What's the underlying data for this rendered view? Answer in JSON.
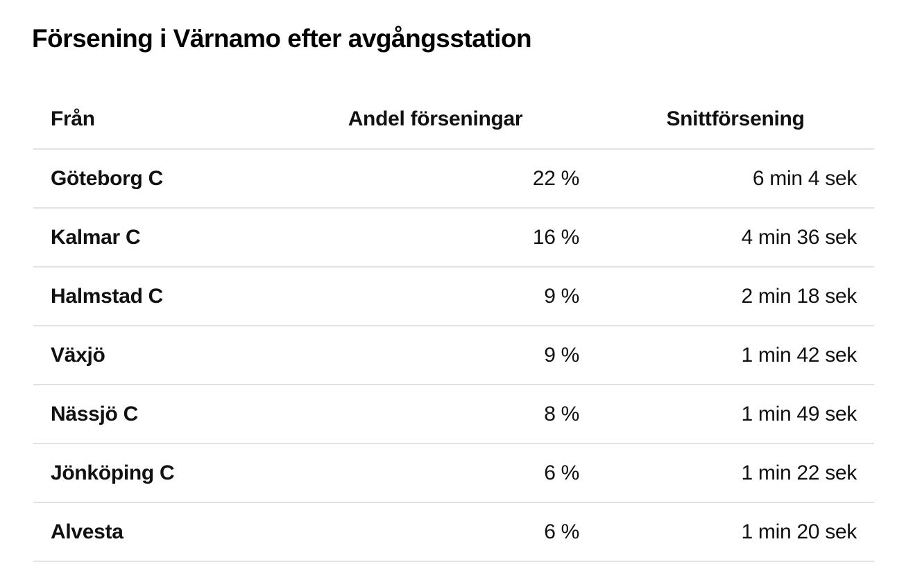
{
  "page": {
    "title": "Försening i Värnamo efter avgångsstation"
  },
  "table": {
    "columns": {
      "from": "Från",
      "share": "Andel förseningar",
      "avg": "Snittförsening"
    },
    "rows": [
      {
        "from": "Göteborg C",
        "share": "22 %",
        "avg": "6 min 4 sek"
      },
      {
        "from": "Kalmar C",
        "share": "16 %",
        "avg": "4 min 36 sek"
      },
      {
        "from": "Halmstad C",
        "share": "9 %",
        "avg": "2 min 18 sek"
      },
      {
        "from": "Växjö",
        "share": "9 %",
        "avg": "1 min 42 sek"
      },
      {
        "from": "Nässjö C",
        "share": "8 %",
        "avg": "1 min 49 sek"
      },
      {
        "from": "Jönköping C",
        "share": "6 %",
        "avg": "1 min 22 sek"
      },
      {
        "from": "Alvesta",
        "share": "6 %",
        "avg": "1 min 20 sek"
      }
    ]
  },
  "chart_data": {
    "type": "table",
    "title": "Försening i Värnamo efter avgångsstation",
    "columns": [
      "Från",
      "Andel förseningar",
      "Snittförsening"
    ],
    "rows": [
      [
        "Göteborg C",
        "22 %",
        "6 min 4 sek"
      ],
      [
        "Kalmar C",
        "16 %",
        "4 min 36 sek"
      ],
      [
        "Halmstad C",
        "9 %",
        "2 min 18 sek"
      ],
      [
        "Växjö",
        "9 %",
        "1 min 42 sek"
      ],
      [
        "Nässjö C",
        "8 %",
        "1 min 49 sek"
      ],
      [
        "Jönköping C",
        "6 %",
        "1 min 22 sek"
      ],
      [
        "Alvesta",
        "6 %",
        "1 min 20 sek"
      ]
    ],
    "share_percent": [
      22,
      16,
      9,
      9,
      8,
      6,
      6
    ],
    "avg_delay_seconds": [
      364,
      276,
      138,
      102,
      109,
      82,
      80
    ]
  },
  "colors": {
    "background": "#ffffff",
    "text": "#111111",
    "divider": "#e2e2e2"
  }
}
